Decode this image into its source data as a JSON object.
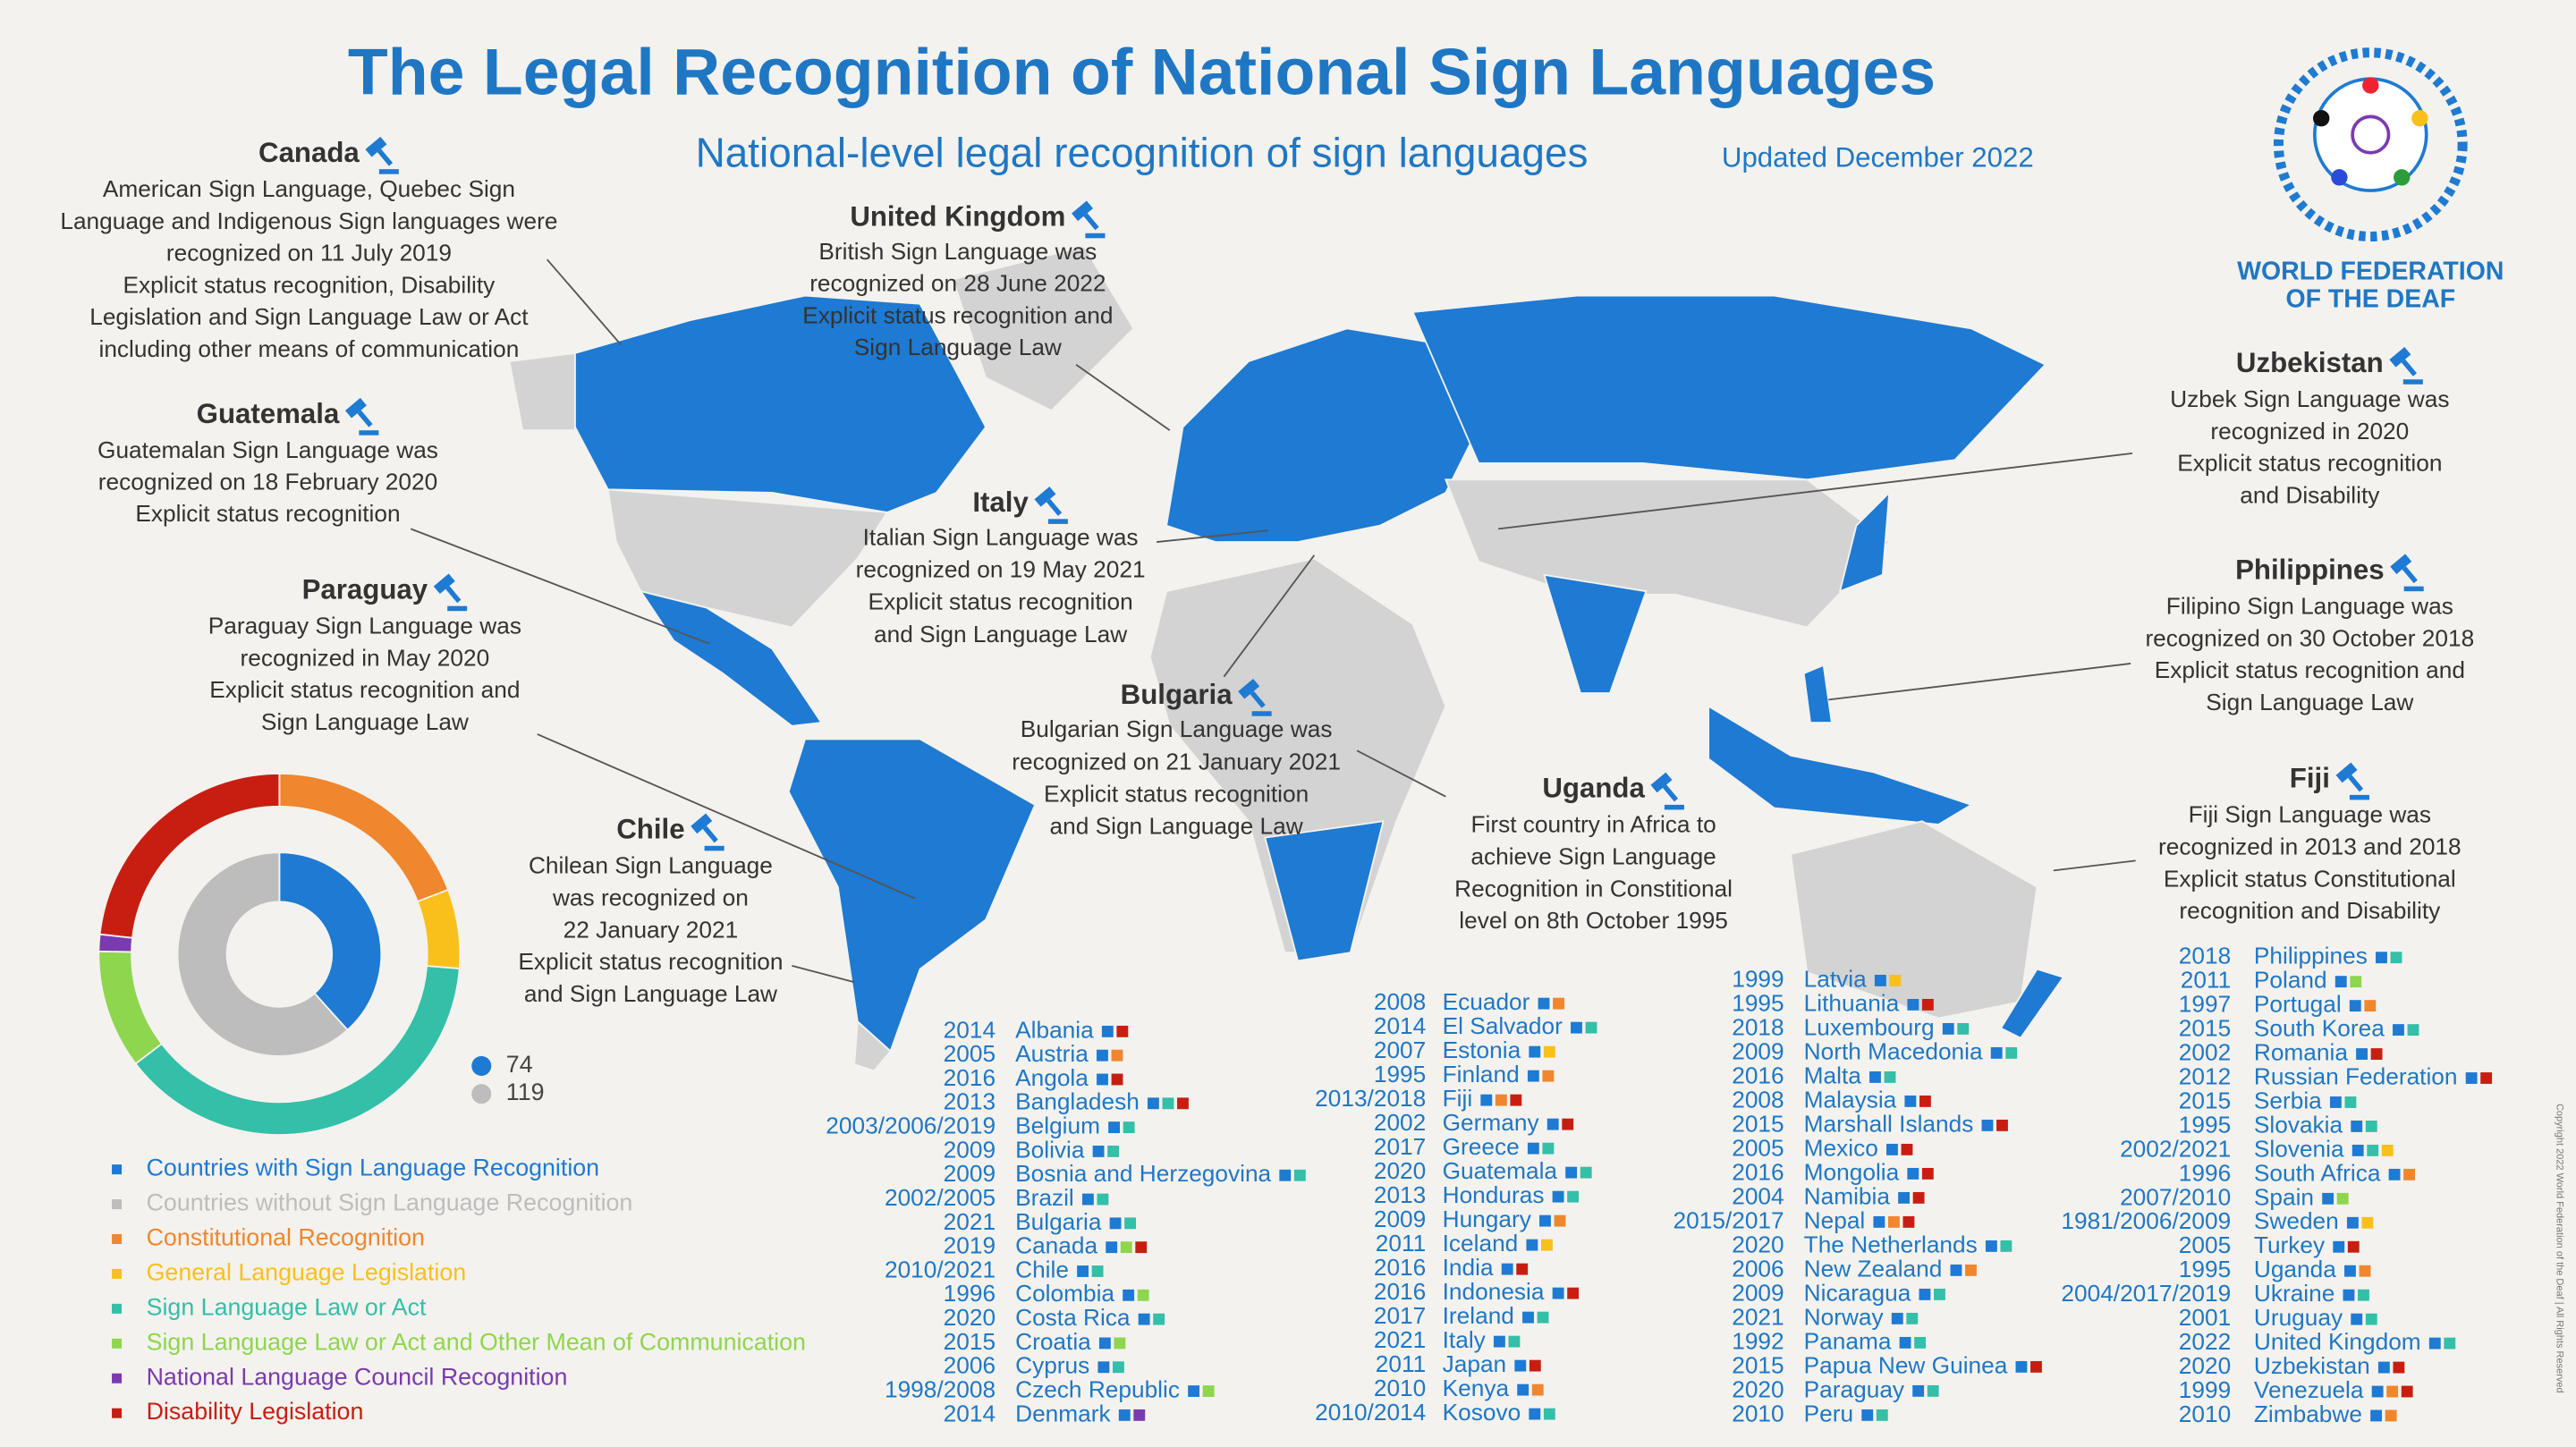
{
  "header": {
    "title": "The Legal Recognition of National Sign Languages",
    "subtitle": "National-level legal recognition of sign languages",
    "updated": "Updated December 2022",
    "org_line1": "WORLD FEDERATION",
    "org_line2": "OF THE DEAF"
  },
  "callouts": [
    {
      "title": "Canada",
      "lines": [
        "American Sign Language, Quebec Sign",
        "Language and Indigenous Sign languages were",
        "recognized on 11 July 2019",
        "Explicit status recognition, Disability",
        "Legislation and Sign Language Law or Act",
        "including other means of communication"
      ]
    },
    {
      "title": "United Kingdom",
      "lines": [
        "British Sign Language was",
        "recognized on 28 June 2022",
        "Explicit status recognition and",
        "Sign Language Law"
      ]
    },
    {
      "title": "Guatemala",
      "lines": [
        "Guatemalan Sign Language was",
        "recognized on 18 February 2020",
        "Explicit status recognition"
      ]
    },
    {
      "title": "Paraguay",
      "lines": [
        "Paraguay Sign Language was",
        "recognized in May 2020",
        "Explicit status recognition and",
        "Sign Language Law"
      ]
    },
    {
      "title": "Chile",
      "lines": [
        "Chilean Sign Language",
        "was recognized on",
        "22 January 2021",
        "Explicit status recognition",
        "and Sign Language Law"
      ]
    },
    {
      "title": "Italy",
      "lines": [
        "Italian Sign Language was",
        "recognized on 19 May 2021",
        "Explicit status recognition",
        "and Sign Language Law"
      ]
    },
    {
      "title": "Bulgaria",
      "lines": [
        "Bulgarian Sign Language was",
        "recognized on 21 January 2021",
        "Explicit status recognition",
        "and Sign Language Law"
      ]
    },
    {
      "title": "Uganda",
      "lines": [
        "First country in Africa to",
        "achieve Sign Language",
        "Recognition in Constitional",
        "level on 8th October 1995"
      ]
    },
    {
      "title": "Uzbekistan",
      "lines": [
        "Uzbek Sign Language was",
        "recognized in 2020",
        "Explicit status recognition",
        "and Disability"
      ]
    },
    {
      "title": "Philippines",
      "lines": [
        "Filipino Sign Language was",
        "recognized on 30 October 2018",
        "Explicit status recognition and",
        "Sign Language Law"
      ]
    },
    {
      "title": "Fiji",
      "lines": [
        "Fiji Sign Language was",
        "recognized in 2013 and 2018",
        "Explicit status Constitutional",
        "recognition and Disability"
      ]
    }
  ],
  "chart_data": {
    "type": "donut",
    "series": [
      {
        "name": "Countries with Sign Language Recognition",
        "color": "#1e7ad2",
        "ring": "inner",
        "value": 74
      },
      {
        "name": "Countries without Sign Language Recognition",
        "color": "#bdbdbd",
        "ring": "inner",
        "value": 119
      },
      {
        "name": "Constitutional Recognition",
        "color": "#f0862e",
        "ring": "outer",
        "value": 38
      },
      {
        "name": "General Language Legislation",
        "color": "#f9c01b",
        "ring": "outer",
        "value": 14
      },
      {
        "name": "Sign Language Law or Act",
        "color": "#33bfa8",
        "ring": "outer",
        "value": 76
      },
      {
        "name": "Sign Language Law or Act and Other Mean of Communication",
        "color": "#8ed64e",
        "ring": "outer",
        "value": 21
      },
      {
        "name": "National Language Council Recognition",
        "color": "#7a3ab0",
        "ring": "outer",
        "value": 3
      },
      {
        "name": "Disability Legislation",
        "color": "#c81e12",
        "ring": "outer",
        "value": 46
      }
    ]
  },
  "countries": [
    {
      "year": "2014",
      "name": "Albania",
      "types": [
        0,
        7
      ]
    },
    {
      "year": "2005",
      "name": "Austria",
      "types": [
        0,
        2
      ]
    },
    {
      "year": "2016",
      "name": "Angola",
      "types": [
        0,
        7
      ]
    },
    {
      "year": "2013",
      "name": "Bangladesh",
      "types": [
        0,
        4,
        7
      ]
    },
    {
      "year": "2003/2006/2019",
      "name": "Belgium",
      "types": [
        0,
        4
      ]
    },
    {
      "year": "2009",
      "name": "Bolivia",
      "types": [
        0,
        4
      ]
    },
    {
      "year": "2009",
      "name": "Bosnia and Herzegovina",
      "types": [
        0,
        4
      ]
    },
    {
      "year": "2002/2005",
      "name": "Brazil",
      "types": [
        0,
        4
      ]
    },
    {
      "year": "2021",
      "name": "Bulgaria",
      "types": [
        0,
        4
      ]
    },
    {
      "year": "2019",
      "name": "Canada",
      "types": [
        0,
        5,
        7
      ]
    },
    {
      "year": "2010/2021",
      "name": "Chile",
      "types": [
        0,
        4
      ]
    },
    {
      "year": "1996",
      "name": "Colombia",
      "types": [
        0,
        5
      ]
    },
    {
      "year": "2020",
      "name": "Costa Rica",
      "types": [
        0,
        4
      ]
    },
    {
      "year": "2015",
      "name": "Croatia",
      "types": [
        0,
        5
      ]
    },
    {
      "year": "2006",
      "name": "Cyprus",
      "types": [
        0,
        4
      ]
    },
    {
      "year": "1998/2008",
      "name": "Czech Republic",
      "types": [
        0,
        5
      ]
    },
    {
      "year": "2014",
      "name": "Denmark",
      "types": [
        0,
        6
      ]
    },
    {
      "year": "2008",
      "name": "Ecuador",
      "types": [
        0,
        2
      ]
    },
    {
      "year": "2014",
      "name": "El Salvador",
      "types": [
        0,
        4
      ]
    },
    {
      "year": "2007",
      "name": "Estonia",
      "types": [
        0,
        3
      ]
    },
    {
      "year": "1995",
      "name": "Finland",
      "types": [
        0,
        2
      ]
    },
    {
      "year": "2013/2018",
      "name": "Fiji",
      "types": [
        0,
        2,
        7
      ]
    },
    {
      "year": "2002",
      "name": "Germany",
      "types": [
        0,
        7
      ]
    },
    {
      "year": "2017",
      "name": "Greece",
      "types": [
        0,
        4
      ]
    },
    {
      "year": "2020",
      "name": "Guatemala",
      "types": [
        0,
        4
      ]
    },
    {
      "year": "2013",
      "name": "Honduras",
      "types": [
        0,
        4
      ]
    },
    {
      "year": "2009",
      "name": "Hungary",
      "types": [
        0,
        2
      ]
    },
    {
      "year": "2011",
      "name": "Iceland",
      "types": [
        0,
        3
      ]
    },
    {
      "year": "2016",
      "name": "India",
      "types": [
        0,
        7
      ]
    },
    {
      "year": "2016",
      "name": "Indonesia",
      "types": [
        0,
        7
      ]
    },
    {
      "year": "2017",
      "name": "Ireland",
      "types": [
        0,
        4
      ]
    },
    {
      "year": "2021",
      "name": "Italy",
      "types": [
        0,
        4
      ]
    },
    {
      "year": "2011",
      "name": "Japan",
      "types": [
        0,
        7
      ]
    },
    {
      "year": "2010",
      "name": "Kenya",
      "types": [
        0,
        2
      ]
    },
    {
      "year": "2010/2014",
      "name": "Kosovo",
      "types": [
        0,
        4
      ]
    },
    {
      "year": "1999",
      "name": "Latvia",
      "types": [
        0,
        3
      ]
    },
    {
      "year": "1995",
      "name": "Lithuania",
      "types": [
        0,
        7
      ]
    },
    {
      "year": "2018",
      "name": "Luxembourg",
      "types": [
        0,
        4
      ]
    },
    {
      "year": "2009",
      "name": "North Macedonia",
      "types": [
        0,
        4
      ]
    },
    {
      "year": "2016",
      "name": "Malta",
      "types": [
        0,
        4
      ]
    },
    {
      "year": "2008",
      "name": "Malaysia",
      "types": [
        0,
        7
      ]
    },
    {
      "year": "2015",
      "name": "Marshall Islands",
      "types": [
        0,
        7
      ]
    },
    {
      "year": "2005",
      "name": "Mexico",
      "types": [
        0,
        7
      ]
    },
    {
      "year": "2016",
      "name": "Mongolia",
      "types": [
        0,
        7
      ]
    },
    {
      "year": "2004",
      "name": "Namibia",
      "types": [
        0,
        7
      ]
    },
    {
      "year": "2015/2017",
      "name": "Nepal",
      "types": [
        0,
        2,
        7
      ]
    },
    {
      "year": "2020",
      "name": "The Netherlands",
      "types": [
        0,
        4
      ]
    },
    {
      "year": "2006",
      "name": "New Zealand",
      "types": [
        0,
        2
      ]
    },
    {
      "year": "2009",
      "name": "Nicaragua",
      "types": [
        0,
        4
      ]
    },
    {
      "year": "2021",
      "name": "Norway",
      "types": [
        0,
        4
      ]
    },
    {
      "year": "1992",
      "name": "Panama",
      "types": [
        0,
        4
      ]
    },
    {
      "year": "2015",
      "name": "Papua New Guinea",
      "types": [
        0,
        7
      ]
    },
    {
      "year": "2020",
      "name": "Paraguay",
      "types": [
        0,
        4
      ]
    },
    {
      "year": "2010",
      "name": "Peru",
      "types": [
        0,
        4
      ]
    },
    {
      "year": "2018",
      "name": "Philippines",
      "types": [
        0,
        4
      ]
    },
    {
      "year": "2011",
      "name": "Poland",
      "types": [
        0,
        5
      ]
    },
    {
      "year": "1997",
      "name": "Portugal",
      "types": [
        0,
        2
      ]
    },
    {
      "year": "2015",
      "name": "South Korea",
      "types": [
        0,
        4
      ]
    },
    {
      "year": "2002",
      "name": "Romania",
      "types": [
        0,
        7
      ]
    },
    {
      "year": "2012",
      "name": "Russian Federation",
      "types": [
        0,
        7
      ]
    },
    {
      "year": "2015",
      "name": "Serbia",
      "types": [
        0,
        4
      ]
    },
    {
      "year": "1995",
      "name": "Slovakia",
      "types": [
        0,
        4
      ]
    },
    {
      "year": "2002/2021",
      "name": "Slovenia",
      "types": [
        0,
        4,
        3
      ]
    },
    {
      "year": "1996",
      "name": "South Africa",
      "types": [
        0,
        2
      ]
    },
    {
      "year": "2007/2010",
      "name": "Spain",
      "types": [
        0,
        5
      ]
    },
    {
      "year": "1981/2006/2009",
      "name": "Sweden",
      "types": [
        0,
        3
      ]
    },
    {
      "year": "2005",
      "name": "Turkey",
      "types": [
        0,
        7
      ]
    },
    {
      "year": "1995",
      "name": "Uganda",
      "types": [
        0,
        2
      ]
    },
    {
      "year": "2004/2017/2019",
      "name": "Ukraine",
      "types": [
        0,
        4
      ]
    },
    {
      "year": "2001",
      "name": "Uruguay",
      "types": [
        0,
        4
      ]
    },
    {
      "year": "2022",
      "name": "United Kingdom",
      "types": [
        0,
        4
      ]
    },
    {
      "year": "2020",
      "name": "Uzbekistan",
      "types": [
        0,
        7
      ]
    },
    {
      "year": "1999",
      "name": "Venezuela",
      "types": [
        0,
        2,
        7
      ]
    },
    {
      "year": "2010",
      "name": "Zimbabwe",
      "types": [
        0,
        2
      ]
    }
  ],
  "copyright": "Copyright 2022 World Federation of the Deaf | All Rights Reserved"
}
